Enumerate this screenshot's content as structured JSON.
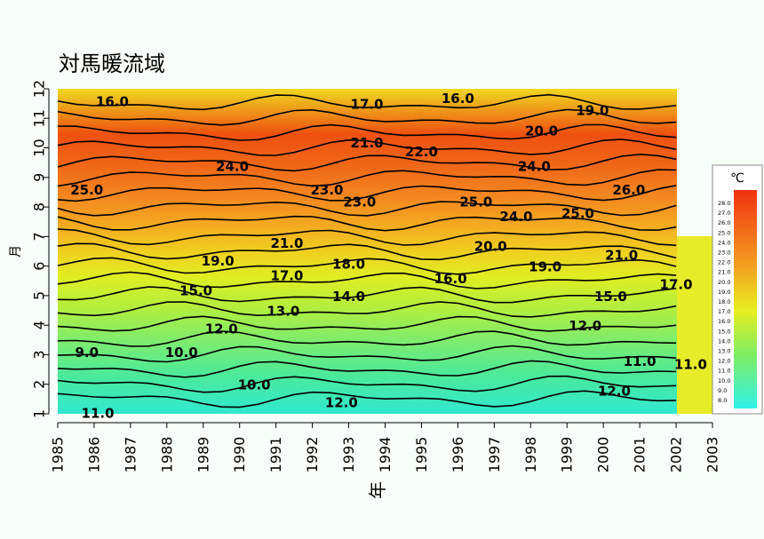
{
  "chart_data": {
    "type": "heatmap",
    "title": "対馬暖流域",
    "xlabel": "年",
    "ylabel": "月",
    "x_ticks": [
      "1985",
      "1986",
      "1987",
      "1988",
      "1989",
      "1990",
      "1991",
      "1992",
      "1993",
      "1994",
      "1995",
      "1996",
      "1997",
      "1998",
      "1999",
      "2000",
      "2001",
      "2002",
      "2003"
    ],
    "y_ticks": [
      "1",
      "2",
      "3",
      "4",
      "5",
      "6",
      "7",
      "8",
      "9",
      "10",
      "11",
      "12"
    ],
    "xlim": [
      1985,
      2003
    ],
    "ylim": [
      1,
      12
    ],
    "legend": {
      "unit": "℃",
      "labels": [
        "28.0",
        "27.0",
        "26.0",
        "25.0",
        "24.0",
        "23.0",
        "22.0",
        "21.0",
        "20.0",
        "19.0",
        "18.0",
        "17.0",
        "16.0",
        "15.0",
        "14.0",
        "13.0",
        "12.0",
        "11.0",
        "10.0",
        "9.0",
        "8.0"
      ],
      "position": "right"
    },
    "contour_labels": [
      {
        "text": "16.0",
        "x": 1986.5,
        "y": 11.6
      },
      {
        "text": "17.0",
        "x": 1993.5,
        "y": 11.5
      },
      {
        "text": "16.0",
        "x": 1996,
        "y": 11.7
      },
      {
        "text": "19.0",
        "x": 1999.7,
        "y": 11.3
      },
      {
        "text": "20.0",
        "x": 1998.3,
        "y": 10.6
      },
      {
        "text": "21.0",
        "x": 1993.5,
        "y": 10.2
      },
      {
        "text": "22.0",
        "x": 1995,
        "y": 9.9
      },
      {
        "text": "24.0",
        "x": 1989.8,
        "y": 9.4
      },
      {
        "text": "24.0",
        "x": 1998.1,
        "y": 9.4
      },
      {
        "text": "25.0",
        "x": 1985.8,
        "y": 8.6
      },
      {
        "text": "23.0",
        "x": 1992.4,
        "y": 8.6
      },
      {
        "text": "23.0",
        "x": 1993.3,
        "y": 8.2
      },
      {
        "text": "26.0",
        "x": 2000.7,
        "y": 8.6
      },
      {
        "text": "25.0",
        "x": 1996.5,
        "y": 8.2
      },
      {
        "text": "25.0",
        "x": 1999.3,
        "y": 7.8
      },
      {
        "text": "24.0",
        "x": 1997.6,
        "y": 7.7
      },
      {
        "text": "21.0",
        "x": 1991.3,
        "y": 6.8
      },
      {
        "text": "20.0",
        "x": 1996.9,
        "y": 6.7
      },
      {
        "text": "21.0",
        "x": 2000.5,
        "y": 6.4
      },
      {
        "text": "19.0",
        "x": 1989.4,
        "y": 6.2
      },
      {
        "text": "18.0",
        "x": 1993,
        "y": 6.1
      },
      {
        "text": "19.0",
        "x": 1998.4,
        "y": 6.0
      },
      {
        "text": "17.0",
        "x": 1991.3,
        "y": 5.7
      },
      {
        "text": "16.0",
        "x": 1995.8,
        "y": 5.6
      },
      {
        "text": "17.0",
        "x": 2002,
        "y": 5.4
      },
      {
        "text": "15.0",
        "x": 1988.8,
        "y": 5.2
      },
      {
        "text": "15.0",
        "x": 2000.2,
        "y": 5.0
      },
      {
        "text": "14.0",
        "x": 1993,
        "y": 5.0
      },
      {
        "text": "13.0",
        "x": 1991.2,
        "y": 4.5
      },
      {
        "text": "12.0",
        "x": 1989.5,
        "y": 3.9
      },
      {
        "text": "12.0",
        "x": 1999.5,
        "y": 4.0
      },
      {
        "text": "9.0",
        "x": 1985.8,
        "y": 3.1
      },
      {
        "text": "10.0",
        "x": 1988.4,
        "y": 3.1
      },
      {
        "text": "11.0",
        "x": 2001,
        "y": 2.8
      },
      {
        "text": "11.0",
        "x": 2002.4,
        "y": 2.7
      },
      {
        "text": "10.0",
        "x": 1990.4,
        "y": 2.0
      },
      {
        "text": "12.0",
        "x": 2000.3,
        "y": 1.8
      },
      {
        "text": "12.0",
        "x": 1992.8,
        "y": 1.4
      },
      {
        "text": "11.0",
        "x": 1986.1,
        "y": 1.05
      }
    ]
  }
}
